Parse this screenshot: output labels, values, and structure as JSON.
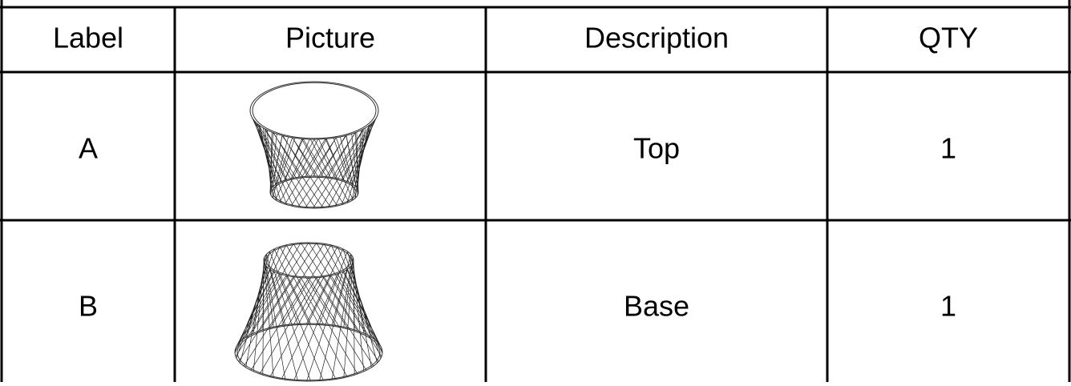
{
  "table": {
    "header": [
      "Label",
      "Picture",
      "Description",
      "QTY"
    ],
    "rows": [
      {
        "label": "A",
        "description": "Top",
        "qty": 1
      },
      {
        "label": "B",
        "description": "Base",
        "qty": 1
      }
    ]
  }
}
